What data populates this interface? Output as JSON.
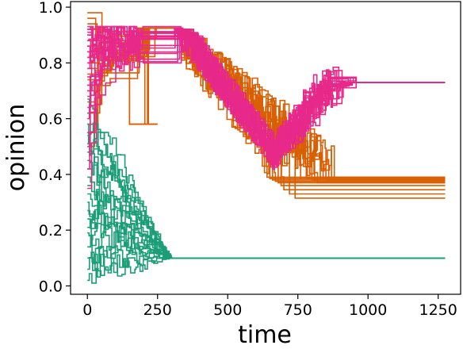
{
  "chart_data": {
    "type": "line",
    "title": "",
    "xlabel": "time",
    "ylabel": "opinion",
    "xlim": [
      -60,
      1330
    ],
    "ylim": [
      -0.03,
      1.02
    ],
    "xticks": [
      0,
      250,
      500,
      750,
      1000,
      1250
    ],
    "yticks": [
      0.0,
      0.2,
      0.4,
      0.6,
      0.8,
      1.0
    ],
    "xtick_labels": [
      "0",
      "250",
      "500",
      "750",
      "1000",
      "1250"
    ],
    "ytick_labels": [
      "0.0",
      "0.2",
      "0.4",
      "0.6",
      "0.8",
      "1.0"
    ],
    "grid": false,
    "legend": "none",
    "groups": [
      {
        "color": "#1b9e77",
        "t_end": 1275,
        "count": 20,
        "final_value": 0.1,
        "initial_values": [
          0.02,
          0.06,
          0.1,
          0.14,
          0.19,
          0.21,
          0.24,
          0.27,
          0.3,
          0.33,
          0.36,
          0.39,
          0.42,
          0.45,
          0.48,
          0.51,
          0.54,
          0.58,
          0.62,
          0.67
        ],
        "converge_time": 290
      },
      {
        "color": "#d95f02",
        "t_end": 1275,
        "count": 20,
        "initial_values": [
          0.98,
          0.96,
          0.94,
          0.92,
          0.9,
          0.88,
          0.86,
          0.84,
          0.82,
          0.8,
          0.78,
          0.76,
          0.74,
          0.72,
          0.7,
          0.66,
          0.62,
          0.58,
          0.55,
          0.5
        ],
        "plateau_value": 0.925,
        "plateau_time": [
          250,
          310
        ],
        "final_values": [
          0.39,
          0.385,
          0.38,
          0.375,
          0.37,
          0.36,
          0.345,
          0.33,
          0.315,
          0.385,
          0.39,
          0.38,
          0.375,
          0.37,
          0.385,
          0.39,
          0.38,
          0.375,
          0.385,
          0.39
        ],
        "settle_times": [
          640,
          650,
          660,
          670,
          680,
          690,
          700,
          720,
          740,
          760,
          780,
          800,
          810,
          820,
          830,
          840,
          850,
          860,
          870,
          880
        ]
      },
      {
        "color": "#e7298a",
        "t_end": 1275,
        "count": 20,
        "initial_values": [
          0.35,
          0.42,
          0.5,
          0.55,
          0.6,
          0.64,
          0.68,
          0.7,
          0.72,
          0.75,
          0.78,
          0.8,
          0.82,
          0.84,
          0.86,
          0.88,
          0.9,
          0.91,
          0.92,
          0.93
        ],
        "plateau_value": 0.925,
        "plateau_time": [
          200,
          310
        ],
        "dip_min": 0.42,
        "dip_time": 660,
        "final_value": 0.73,
        "final_time": 900
      }
    ]
  }
}
